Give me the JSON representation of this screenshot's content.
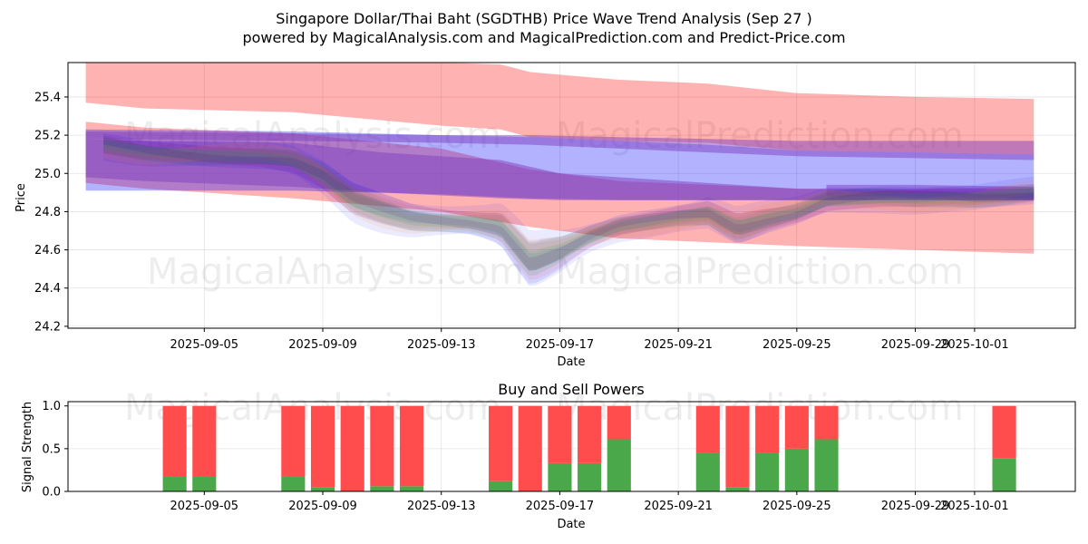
{
  "chart_data": [
    {
      "type": "area",
      "title_line1": "Singapore Dollar/Thai Baht (SGDTHB) Price Wave Trend Analysis (Sep 27 )",
      "title_line2": "powered by MagicalAnalysis.com and MagicalPrediction.com and Predict-Price.com",
      "xlabel": "Date",
      "ylabel": "Price",
      "x_ticks": [
        "2025-09-05",
        "2025-09-09",
        "2025-09-13",
        "2025-09-17",
        "2025-09-21",
        "2025-09-25",
        "2025-09-29",
        "2025-10-01"
      ],
      "x_tick_days": [
        5,
        9,
        13,
        17,
        21,
        25,
        29,
        31
      ],
      "x_range_days": [
        0.4,
        34.4
      ],
      "y_ticks": [
        24.2,
        24.4,
        24.6,
        24.8,
        25.0,
        25.2,
        25.4
      ],
      "ylim": [
        24.19,
        25.58
      ],
      "grid": true,
      "watermarks": [
        "MagicalAnalysis.com",
        "MagicalPrediction.com",
        "MagicalAnalysis.com",
        "MagicalPrediction.com"
      ],
      "bands": [
        {
          "name": "red-upper",
          "color": "#ff0000",
          "alpha": 0.3,
          "x": [
            1,
            3,
            8,
            13,
            15,
            16,
            19,
            22,
            25,
            29,
            33
          ],
          "low": [
            25.37,
            25.34,
            25.32,
            25.25,
            25.23,
            25.19,
            25.17,
            25.16,
            25.12,
            25.11,
            25.1
          ],
          "high": [
            25.58,
            25.58,
            25.58,
            25.58,
            25.57,
            25.53,
            25.49,
            25.47,
            25.42,
            25.4,
            25.39
          ]
        },
        {
          "name": "red-lower",
          "color": "#ff0000",
          "alpha": 0.3,
          "x": [
            1,
            3,
            8,
            13,
            16,
            19,
            22,
            25,
            29,
            33
          ],
          "low": [
            24.95,
            24.92,
            24.87,
            24.8,
            24.72,
            24.66,
            24.64,
            24.62,
            24.6,
            24.58
          ],
          "high": [
            25.27,
            25.24,
            25.21,
            25.13,
            25.02,
            24.96,
            24.94,
            24.92,
            24.91,
            24.9
          ]
        },
        {
          "name": "blue-upper",
          "color": "#0000ff",
          "alpha": 0.3,
          "x": [
            1,
            8,
            13,
            16,
            19,
            22,
            25,
            29,
            33
          ],
          "low": [
            24.91,
            24.91,
            24.89,
            24.87,
            24.86,
            24.86,
            24.86,
            24.86,
            24.86
          ],
          "high": [
            25.23,
            25.22,
            25.2,
            25.19,
            25.17,
            25.15,
            25.12,
            25.11,
            25.1
          ]
        },
        {
          "name": "purple-upper",
          "color": "#7f3fbf",
          "alpha": 0.5,
          "x": [
            1,
            3,
            8,
            11,
            15,
            17,
            20,
            25,
            29,
            33
          ],
          "low": [
            24.98,
            24.96,
            24.93,
            24.9,
            24.87,
            24.86,
            24.86,
            24.86,
            24.86,
            24.86
          ],
          "high": [
            25.18,
            25.17,
            25.16,
            25.11,
            25.07,
            25.0,
            24.97,
            24.92,
            24.92,
            24.92
          ]
        },
        {
          "name": "purple-lower",
          "color": "#7f3fbf",
          "alpha": 0.5,
          "x": [
            26,
            29,
            33
          ],
          "low": [
            24.88,
            24.88,
            24.87
          ],
          "high": [
            24.94,
            24.94,
            24.93
          ]
        },
        {
          "name": "purple-top",
          "color": "#7f3fbf",
          "alpha": 0.5,
          "x": [
            1,
            8,
            13,
            16,
            19,
            22,
            25,
            29,
            33
          ],
          "low": [
            25.18,
            25.17,
            25.16,
            25.15,
            25.13,
            25.11,
            25.09,
            25.08,
            25.07
          ],
          "high": [
            25.22,
            25.21,
            25.2,
            25.2,
            25.19,
            25.18,
            25.17,
            25.17,
            25.17
          ]
        }
      ],
      "price_path": {
        "x": [
          1.6,
          3,
          5,
          7,
          8,
          9,
          10,
          11,
          12,
          13,
          14,
          15,
          16,
          17,
          18,
          19,
          20,
          21,
          22,
          23,
          24,
          25,
          26,
          27,
          28,
          29,
          30,
          31,
          32,
          33
        ],
        "y": [
          25.15,
          25.12,
          25.1,
          25.08,
          25.06,
          24.98,
          24.86,
          24.81,
          24.77,
          24.76,
          24.75,
          24.72,
          24.53,
          24.58,
          24.66,
          24.72,
          24.75,
          24.78,
          24.8,
          24.72,
          24.76,
          24.79,
          24.85,
          24.86,
          24.87,
          24.87,
          24.88,
          24.88,
          24.89,
          24.9
        ]
      },
      "ensemble": [
        {
          "color": "#0000ff",
          "alpha": 0.08,
          "spread": 1.6,
          "offset": -0.02
        },
        {
          "color": "#0000ff",
          "alpha": 0.1,
          "spread": 1.2,
          "offset": 0.01
        },
        {
          "color": "#2ca02c",
          "alpha": 0.12,
          "spread": 0.9,
          "offset": 0.02
        },
        {
          "color": "#ff7f0e",
          "alpha": 0.1,
          "spread": 0.8,
          "offset": 0.04
        },
        {
          "color": "#ff0000",
          "alpha": 0.07,
          "spread": 1.0,
          "offset": 0.0
        },
        {
          "color": "#2ca02c",
          "alpha": 0.14,
          "spread": 0.5,
          "offset": -0.01
        },
        {
          "color": "#1f77b4",
          "alpha": 0.12,
          "spread": 0.4,
          "offset": 0.0
        },
        {
          "color": "#4b0082",
          "alpha": 0.12,
          "spread": 0.3,
          "offset": 0.02
        }
      ]
    },
    {
      "type": "bar",
      "title": "Buy and Sell Powers",
      "xlabel": "Date",
      "ylabel": "Signal Strength",
      "y_ticks": [
        0.0,
        0.5,
        1.0
      ],
      "ylim": [
        0,
        1.05
      ],
      "x_ticks": [
        "2025-09-05",
        "2025-09-09",
        "2025-09-13",
        "2025-09-17",
        "2025-09-21",
        "2025-09-25",
        "2025-09-29",
        "2025-10-01"
      ],
      "x_tick_days": [
        5,
        9,
        13,
        17,
        21,
        25,
        29,
        31
      ],
      "x_range_days": [
        0.4,
        34.4
      ],
      "buy_color": "#4aa84a",
      "sell_color": "#ff4d4d",
      "days": [
        4,
        5,
        8,
        9,
        10,
        11,
        12,
        15,
        16,
        17,
        18,
        19,
        22,
        23,
        24,
        25,
        26,
        32
      ],
      "buy": [
        0.17,
        0.17,
        0.17,
        0.05,
        0.0,
        0.06,
        0.06,
        0.12,
        0.0,
        0.33,
        0.33,
        0.61,
        0.45,
        0.05,
        0.45,
        0.5,
        0.61,
        0.39
      ],
      "sell": [
        0.83,
        0.83,
        0.83,
        0.95,
        1.0,
        0.94,
        0.94,
        0.88,
        1.0,
        0.67,
        0.67,
        0.39,
        0.55,
        0.95,
        0.55,
        0.5,
        0.39,
        0.61
      ]
    }
  ]
}
